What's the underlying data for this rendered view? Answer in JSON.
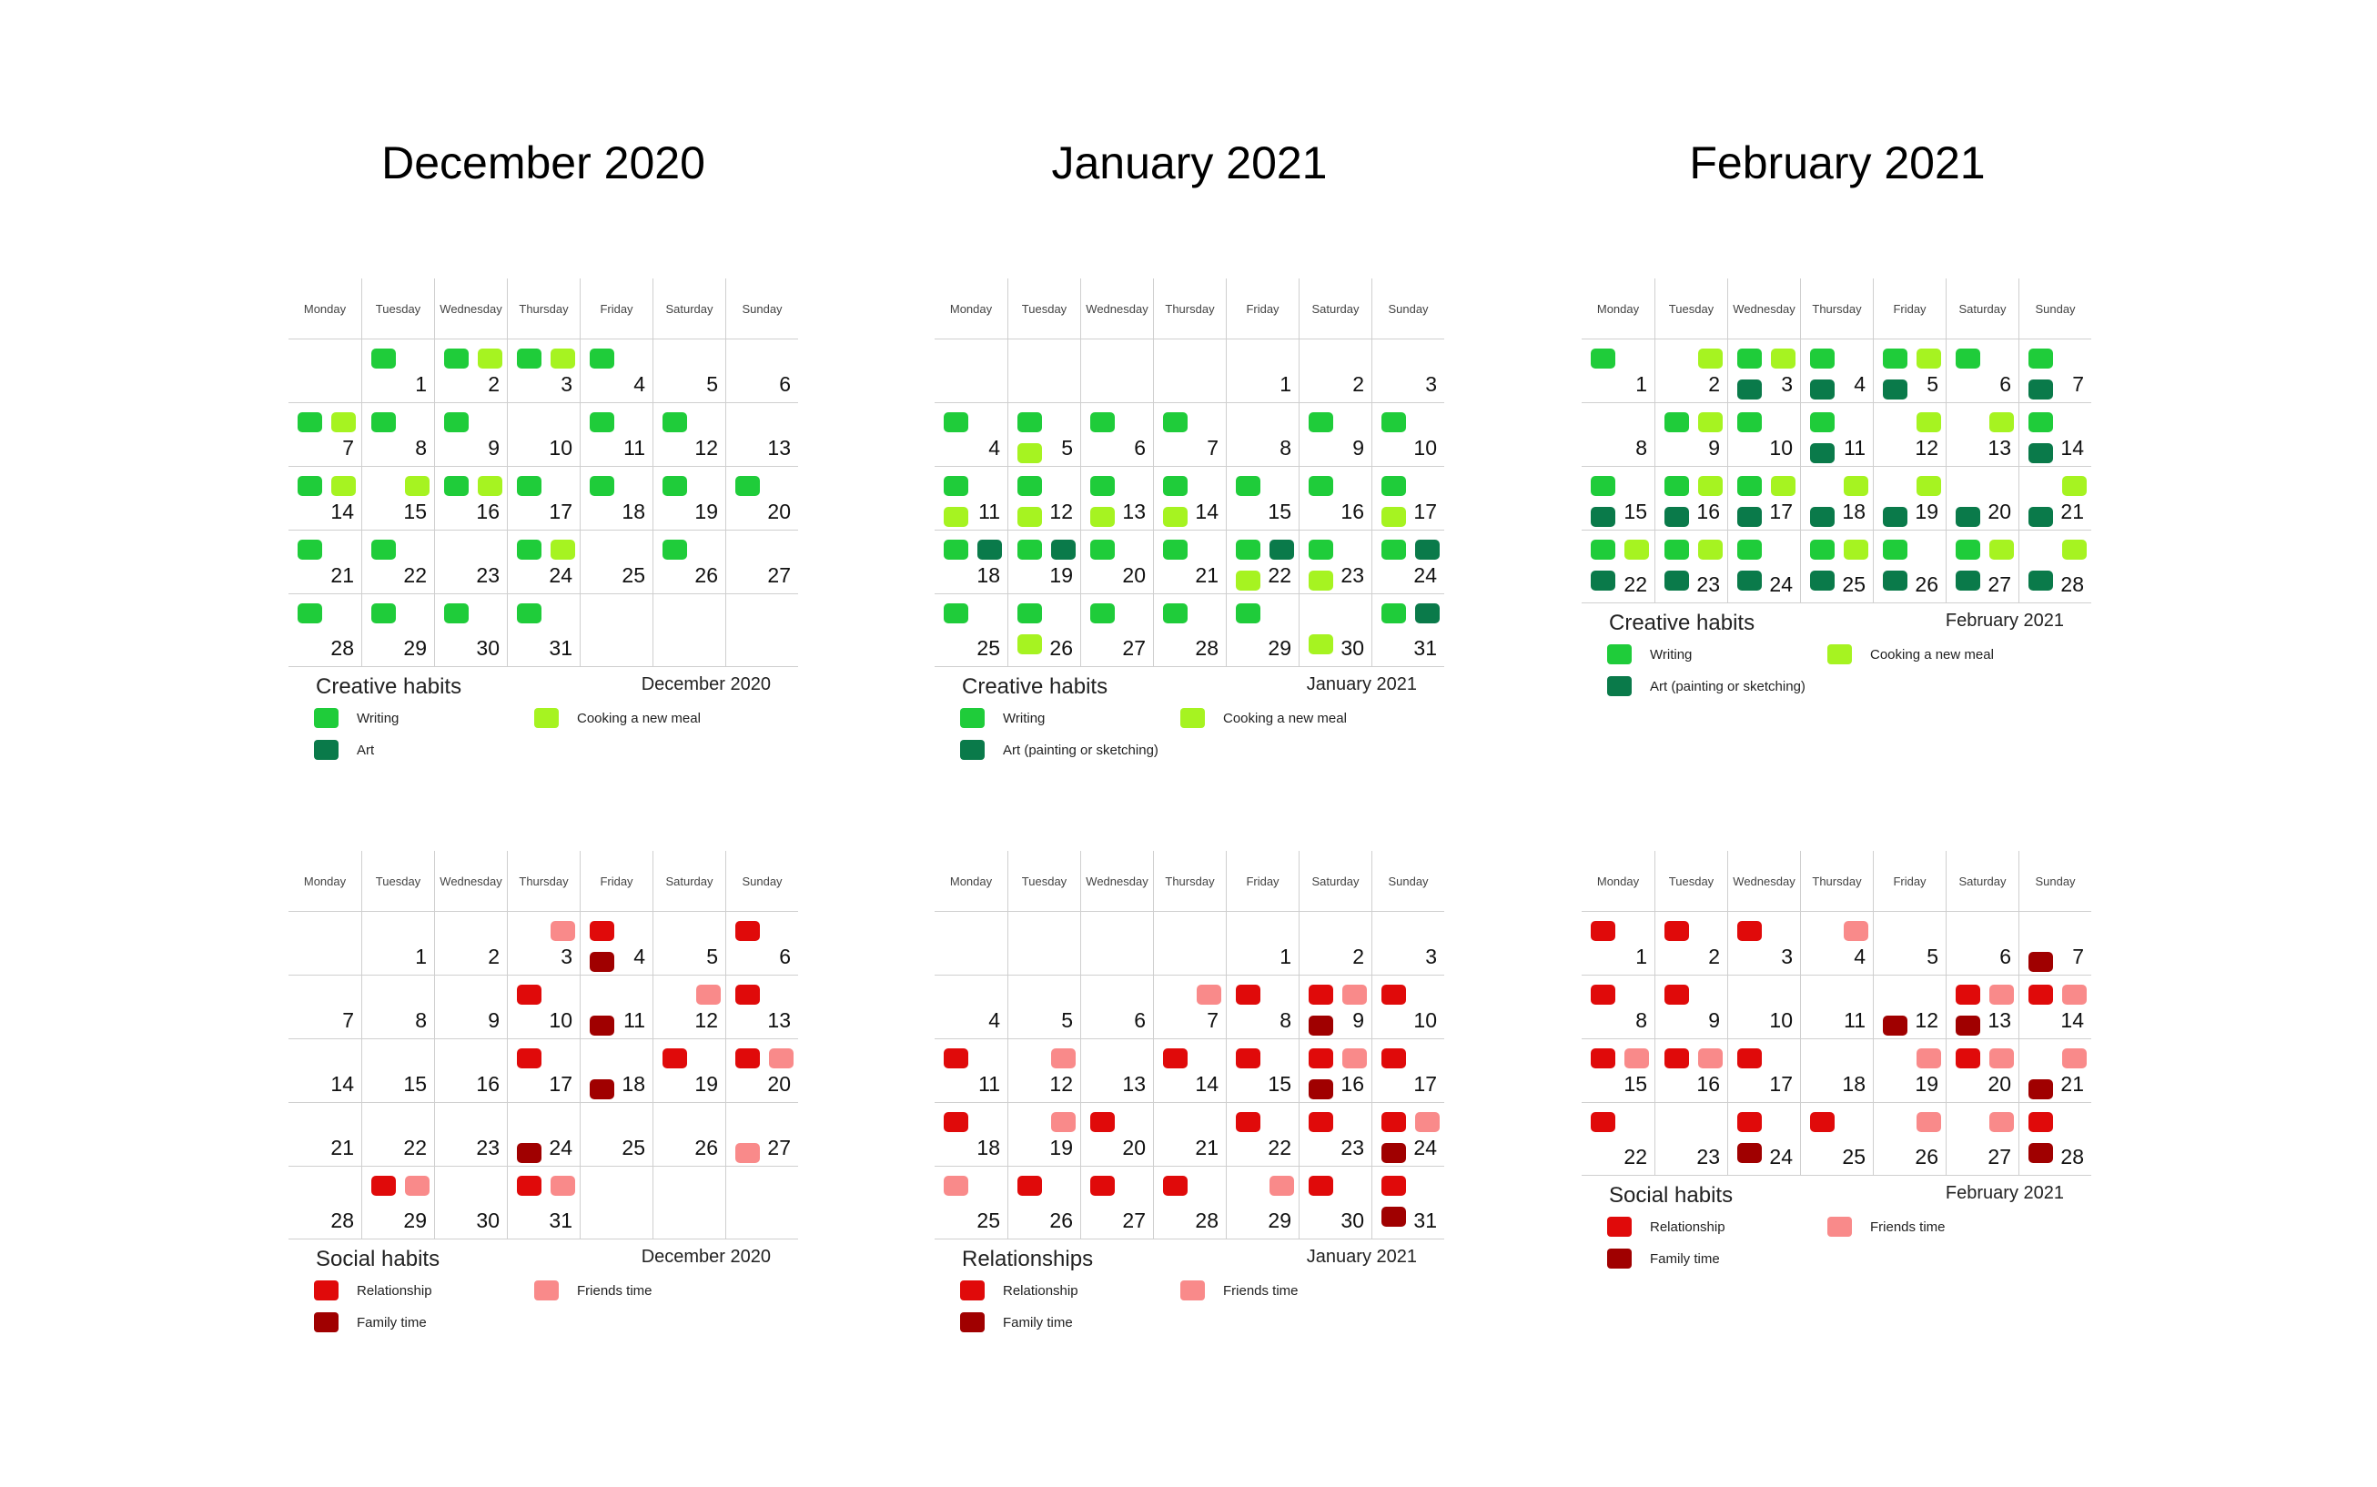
{
  "colors": {
    "writing": "#1fcc3a",
    "cooking": "#a6f321",
    "art": "#0a7a4a",
    "relationship": "#e00a0a",
    "friends": "#f98a8a",
    "family": "#a00000"
  },
  "weekdays": [
    "Monday",
    "Tuesday",
    "Wednesday",
    "Thursday",
    "Friday",
    "Saturday",
    "Sunday"
  ],
  "titles": [
    "December 2020",
    "January 2021",
    "February 2021"
  ],
  "creative": [
    {
      "month": "December 2020",
      "title": "Creative habits",
      "offset": 1,
      "days": 31,
      "legend": [
        {
          "key": "writing",
          "label": "Writing"
        },
        {
          "key": "cooking",
          "label": "Cooking a new meal"
        },
        {
          "key": "art",
          "label": "Art"
        }
      ],
      "marks": {
        "1": [
          "writing"
        ],
        "2": [
          "writing",
          "cooking"
        ],
        "3": [
          "writing",
          "cooking"
        ],
        "4": [
          "writing"
        ],
        "7": [
          "writing",
          "cooking"
        ],
        "8": [
          "writing"
        ],
        "9": [
          "writing"
        ],
        "11": [
          "writing"
        ],
        "12": [
          "writing"
        ],
        "14": [
          "writing",
          "cooking"
        ],
        "15": [
          "",
          "cooking"
        ],
        "16": [
          "writing",
          "cooking"
        ],
        "17": [
          "writing"
        ],
        "18": [
          "writing"
        ],
        "19": [
          "writing"
        ],
        "20": [
          "writing"
        ],
        "21": [
          "writing"
        ],
        "22": [
          "writing"
        ],
        "24": [
          "writing",
          "cooking"
        ],
        "26": [
          "writing"
        ],
        "28": [
          "writing"
        ],
        "29": [
          "writing"
        ],
        "30": [
          "writing"
        ],
        "31": [
          "writing"
        ]
      }
    },
    {
      "month": "January 2021",
      "title": "Creative habits",
      "offset": 4,
      "days": 31,
      "legend": [
        {
          "key": "writing",
          "label": "Writing"
        },
        {
          "key": "cooking",
          "label": "Cooking a new meal"
        },
        {
          "key": "art",
          "label": "Art (painting or sketching)"
        }
      ],
      "marks": {
        "4": [
          "writing"
        ],
        "5": [
          "writing",
          "",
          "cooking"
        ],
        "6": [
          "writing"
        ],
        "7": [
          "writing"
        ],
        "9": [
          "writing"
        ],
        "10": [
          "writing"
        ],
        "11": [
          "writing",
          "",
          "cooking"
        ],
        "12": [
          "writing",
          "",
          "cooking"
        ],
        "13": [
          "writing",
          "",
          "cooking"
        ],
        "14": [
          "writing",
          "",
          "cooking"
        ],
        "15": [
          "writing"
        ],
        "16": [
          "writing"
        ],
        "17": [
          "writing",
          "",
          "cooking"
        ],
        "18": [
          "writing",
          "art"
        ],
        "19": [
          "writing",
          "art"
        ],
        "20": [
          "writing"
        ],
        "21": [
          "writing"
        ],
        "22": [
          "writing",
          "art",
          "cooking"
        ],
        "23": [
          "writing",
          "",
          "cooking"
        ],
        "24": [
          "writing",
          "art"
        ],
        "25": [
          "writing"
        ],
        "26": [
          "writing",
          "",
          "cooking"
        ],
        "27": [
          "writing"
        ],
        "28": [
          "writing"
        ],
        "29": [
          "writing"
        ],
        "30": [
          "",
          "",
          "cooking"
        ],
        "31": [
          "writing",
          "art"
        ]
      }
    },
    {
      "month": "February 2021",
      "title": "Creative habits",
      "offset": 0,
      "days": 28,
      "legend": [
        {
          "key": "writing",
          "label": "Writing"
        },
        {
          "key": "cooking",
          "label": "Cooking a new meal"
        },
        {
          "key": "art",
          "label": "Art (painting or sketching)"
        }
      ],
      "marks": {
        "1": [
          "writing"
        ],
        "2": [
          "",
          "cooking"
        ],
        "3": [
          "writing",
          "cooking",
          "art"
        ],
        "4": [
          "writing",
          "",
          "art"
        ],
        "5": [
          "writing",
          "cooking",
          "art"
        ],
        "6": [
          "writing"
        ],
        "7": [
          "writing",
          "",
          "art"
        ],
        "9": [
          "writing",
          "cooking"
        ],
        "10": [
          "writing"
        ],
        "11": [
          "writing",
          "",
          "art"
        ],
        "12": [
          "",
          "cooking"
        ],
        "13": [
          "",
          "cooking"
        ],
        "14": [
          "writing",
          "",
          "art"
        ],
        "15": [
          "writing",
          "",
          "art"
        ],
        "16": [
          "writing",
          "cooking",
          "art"
        ],
        "17": [
          "writing",
          "cooking",
          "art"
        ],
        "18": [
          "",
          "cooking",
          "art"
        ],
        "19": [
          "",
          "cooking",
          "art"
        ],
        "20": [
          "",
          "",
          "art"
        ],
        "21": [
          "",
          "cooking",
          "art"
        ],
        "22": [
          "writing",
          "cooking",
          "art"
        ],
        "23": [
          "writing",
          "cooking",
          "art"
        ],
        "24": [
          "writing",
          "",
          "art"
        ],
        "25": [
          "writing",
          "cooking",
          "art"
        ],
        "26": [
          "writing",
          "",
          "art"
        ],
        "27": [
          "writing",
          "cooking",
          "art"
        ],
        "28": [
          "",
          "cooking",
          "art"
        ]
      }
    }
  ],
  "social": [
    {
      "month": "December 2020",
      "title": "Social habits",
      "offset": 1,
      "days": 31,
      "legend": [
        {
          "key": "relationship",
          "label": "Relationship"
        },
        {
          "key": "friends",
          "label": "Friends time"
        },
        {
          "key": "family",
          "label": "Family time"
        }
      ],
      "marks": {
        "3": [
          "",
          "friends"
        ],
        "4": [
          "relationship",
          "",
          "family"
        ],
        "6": [
          "relationship"
        ],
        "10": [
          "relationship"
        ],
        "11": [
          "",
          "",
          "family"
        ],
        "12": [
          "",
          "friends"
        ],
        "13": [
          "relationship"
        ],
        "17": [
          "relationship"
        ],
        "18": [
          "",
          "",
          "family"
        ],
        "19": [
          "relationship"
        ],
        "20": [
          "relationship",
          "friends"
        ],
        "24": [
          "",
          "",
          "family"
        ],
        "27": [
          "",
          "",
          "friends"
        ],
        "29": [
          "relationship",
          "friends"
        ],
        "31": [
          "relationship",
          "friends"
        ]
      }
    },
    {
      "month": "January 2021",
      "title": "Relationships",
      "offset": 4,
      "days": 31,
      "legend": [
        {
          "key": "relationship",
          "label": "Relationship"
        },
        {
          "key": "friends",
          "label": "Friends time"
        },
        {
          "key": "family",
          "label": "Family time"
        }
      ],
      "marks": {
        "7": [
          "",
          "friends"
        ],
        "8": [
          "relationship"
        ],
        "9": [
          "relationship",
          "friends",
          "family"
        ],
        "10": [
          "relationship"
        ],
        "11": [
          "relationship"
        ],
        "12": [
          "",
          "friends"
        ],
        "14": [
          "relationship"
        ],
        "15": [
          "relationship"
        ],
        "16": [
          "relationship",
          "friends",
          "family"
        ],
        "17": [
          "relationship"
        ],
        "18": [
          "relationship"
        ],
        "19": [
          "",
          "friends"
        ],
        "20": [
          "relationship"
        ],
        "22": [
          "relationship"
        ],
        "23": [
          "relationship"
        ],
        "24": [
          "relationship",
          "friends",
          "family"
        ],
        "25": [
          "friends"
        ],
        "26": [
          "relationship"
        ],
        "27": [
          "relationship"
        ],
        "28": [
          "relationship"
        ],
        "29": [
          "",
          "friends"
        ],
        "30": [
          "relationship"
        ],
        "31": [
          "relationship",
          "",
          "family"
        ]
      }
    },
    {
      "month": "February 2021",
      "title": "Social habits",
      "offset": 0,
      "days": 28,
      "legend": [
        {
          "key": "relationship",
          "label": "Relationship"
        },
        {
          "key": "friends",
          "label": "Friends time"
        },
        {
          "key": "family",
          "label": "Family time"
        }
      ],
      "marks": {
        "1": [
          "relationship"
        ],
        "2": [
          "relationship"
        ],
        "3": [
          "relationship"
        ],
        "4": [
          "",
          "friends"
        ],
        "7": [
          "",
          "",
          "family"
        ],
        "8": [
          "relationship"
        ],
        "9": [
          "relationship"
        ],
        "12": [
          "",
          "",
          "family"
        ],
        "13": [
          "relationship",
          "friends",
          "family"
        ],
        "14": [
          "relationship",
          "friends"
        ],
        "15": [
          "relationship",
          "friends"
        ],
        "16": [
          "relationship",
          "friends"
        ],
        "17": [
          "relationship"
        ],
        "19": [
          "",
          "friends"
        ],
        "20": [
          "relationship",
          "friends"
        ],
        "21": [
          "",
          "friends",
          "family"
        ],
        "22": [
          "relationship"
        ],
        "24": [
          "relationship",
          "",
          "family"
        ],
        "25": [
          "relationship"
        ],
        "26": [
          "",
          "friends"
        ],
        "27": [
          "",
          "friends"
        ],
        "28": [
          "relationship",
          "",
          "family"
        ]
      }
    }
  ]
}
